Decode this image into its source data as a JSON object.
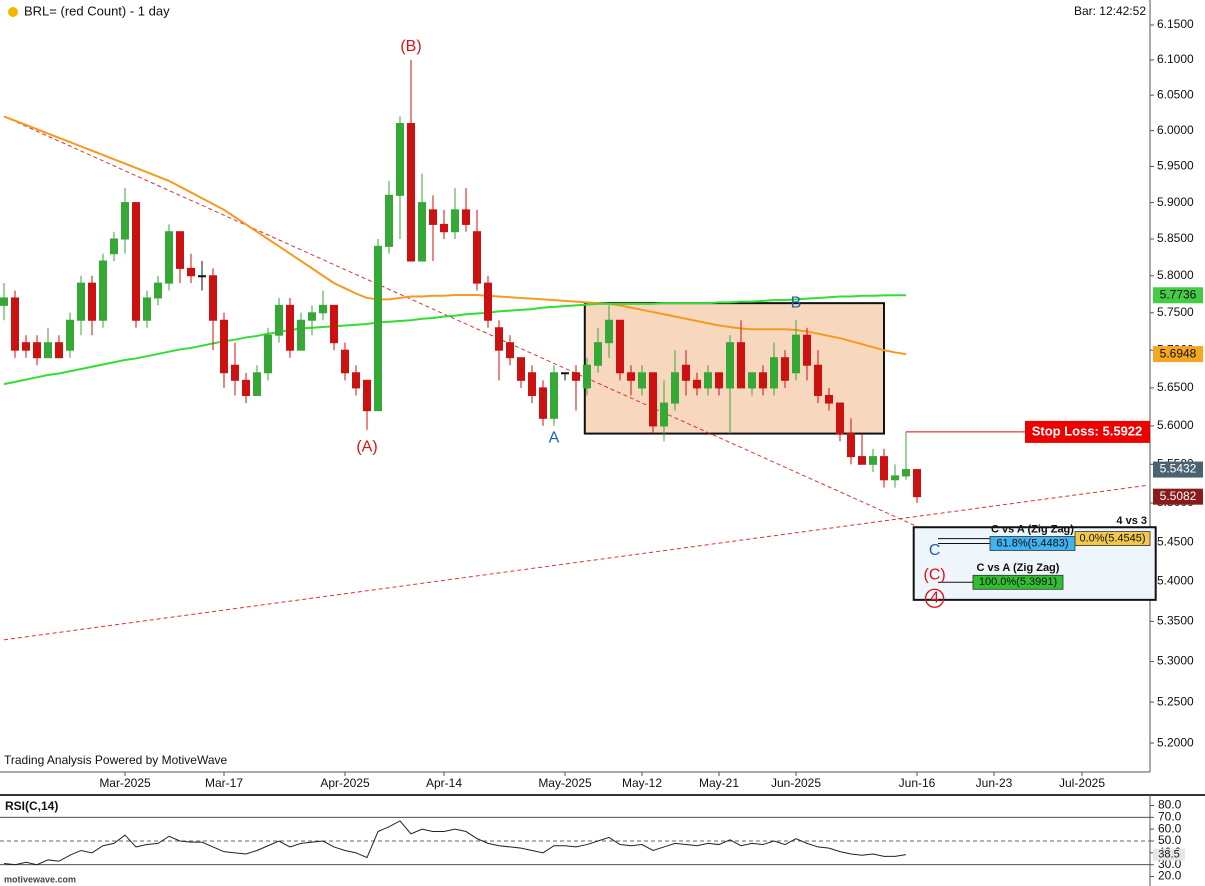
{
  "chart_data": [
    {
      "type": "candlestick",
      "title": "BRL= (red Count) - 1 day",
      "bar_time": "Bar: 12:42:52",
      "credit": "Trading Analysis Powered by MotiveWave",
      "title_dot_color": "#f5b400",
      "log_scale": true,
      "ylim": [
        5.165,
        6.186
      ],
      "yticks": [
        {
          "value": 6.15,
          "label": "6.1500"
        },
        {
          "value": 6.1,
          "label": "6.1000"
        },
        {
          "value": 6.05,
          "label": "6.0500"
        },
        {
          "value": 6.0,
          "label": "6.0000"
        },
        {
          "value": 5.95,
          "label": "5.9500"
        },
        {
          "value": 5.9,
          "label": "5.9000"
        },
        {
          "value": 5.85,
          "label": "5.8500"
        },
        {
          "value": 5.8,
          "label": "5.8000"
        },
        {
          "value": 5.75,
          "label": "5.7500"
        },
        {
          "value": 5.7,
          "label": "5.7000"
        },
        {
          "value": 5.65,
          "label": "5.6500"
        },
        {
          "value": 5.6,
          "label": "5.6000"
        },
        {
          "value": 5.55,
          "label": "5.5500"
        },
        {
          "value": 5.5,
          "label": "5.5000"
        },
        {
          "value": 5.45,
          "label": "5.4500"
        },
        {
          "value": 5.4,
          "label": "5.4000"
        },
        {
          "value": 5.35,
          "label": "5.3500"
        },
        {
          "value": 5.3,
          "label": "5.3000"
        },
        {
          "value": 5.25,
          "label": "5.2500"
        },
        {
          "value": 5.2,
          "label": "5.2000"
        }
      ],
      "categories": [
        null,
        null,
        null,
        null,
        null,
        null,
        null,
        null,
        null,
        null,
        null,
        "Mar-2025",
        null,
        null,
        null,
        null,
        null,
        null,
        null,
        null,
        "Mar-17",
        null,
        null,
        null,
        null,
        null,
        null,
        null,
        null,
        null,
        null,
        "Apr-2025",
        null,
        null,
        null,
        null,
        null,
        null,
        null,
        null,
        "Apr-14",
        null,
        null,
        null,
        null,
        null,
        null,
        null,
        null,
        null,
        null,
        "May-2025",
        null,
        null,
        null,
        null,
        null,
        null,
        "May-12",
        null,
        null,
        null,
        null,
        null,
        null,
        "May-21",
        null,
        null,
        null,
        null,
        null,
        null,
        "Jun-2025",
        null,
        null,
        null,
        null,
        null,
        null,
        null,
        null,
        null,
        null,
        "Jun-16",
        null,
        null,
        null,
        null,
        null,
        null,
        "Jun-23",
        null,
        null,
        null,
        null,
        null,
        null,
        null,
        "Jul-2025",
        null,
        null,
        null,
        null,
        null,
        null
      ],
      "up_color": "#35a835",
      "down_color": "#cc1111",
      "flat_color": "#111111",
      "open": [
        5.76,
        5.77,
        5.71,
        5.71,
        5.69,
        5.71,
        5.7,
        5.74,
        5.79,
        5.74,
        5.83,
        5.85,
        5.9,
        5.74,
        5.77,
        5.79,
        5.86,
        5.81,
        5.8,
        5.8,
        5.74,
        5.68,
        5.66,
        5.64,
        5.67,
        5.72,
        5.76,
        5.7,
        5.74,
        5.75,
        5.76,
        5.7,
        5.67,
        5.66,
        5.62,
        5.84,
        5.91,
        6.01,
        5.82,
        5.89,
        5.87,
        5.86,
        5.89,
        5.86,
        5.79,
        5.73,
        5.71,
        5.69,
        5.67,
        5.65,
        5.61,
        5.67,
        5.67,
        5.65,
        5.68,
        5.71,
        5.74,
        5.67,
        5.65,
        5.67,
        5.6,
        5.63,
        5.68,
        5.66,
        5.65,
        5.67,
        5.65,
        5.71,
        5.65,
        5.67,
        5.65,
        5.69,
        5.67,
        5.72,
        5.68,
        5.64,
        5.63,
        5.59,
        5.56,
        5.55,
        5.56,
        5.53,
        5.535,
        5.5432,
        null,
        null,
        null,
        null,
        null,
        null,
        null,
        null,
        null,
        null,
        null,
        null,
        null,
        null,
        null,
        null,
        null,
        null,
        null,
        null,
        null
      ],
      "high": [
        5.79,
        5.78,
        5.72,
        5.72,
        5.73,
        5.72,
        5.75,
        5.8,
        5.8,
        5.83,
        5.86,
        5.92,
        5.9,
        5.78,
        5.8,
        5.87,
        5.86,
        5.83,
        5.82,
        5.81,
        5.75,
        5.71,
        5.67,
        5.68,
        5.73,
        5.77,
        5.77,
        5.75,
        5.76,
        5.78,
        5.76,
        5.71,
        5.68,
        5.66,
        5.85,
        5.93,
        6.02,
        6.1,
        5.94,
        5.91,
        5.89,
        5.92,
        5.92,
        5.89,
        5.8,
        5.74,
        5.72,
        5.69,
        5.68,
        5.66,
        5.68,
        5.67,
        5.68,
        5.69,
        5.73,
        5.76,
        5.74,
        5.68,
        5.68,
        5.67,
        5.66,
        5.7,
        5.7,
        5.67,
        5.68,
        5.67,
        5.72,
        5.74,
        5.67,
        5.68,
        5.71,
        5.7,
        5.74,
        5.73,
        5.7,
        5.65,
        5.63,
        5.61,
        5.59,
        5.57,
        5.57,
        5.55,
        5.5922,
        5.5432,
        null,
        null,
        null,
        null,
        null,
        null,
        null,
        null,
        null,
        null,
        null,
        null,
        null,
        null,
        null,
        null,
        null,
        null,
        null,
        null,
        null
      ],
      "low": [
        5.74,
        5.69,
        5.69,
        5.68,
        5.69,
        5.69,
        5.69,
        5.72,
        5.72,
        5.73,
        5.82,
        5.83,
        5.73,
        5.73,
        5.76,
        5.78,
        5.79,
        5.79,
        5.78,
        5.7,
        5.65,
        5.64,
        5.63,
        5.64,
        5.66,
        5.71,
        5.69,
        5.7,
        5.72,
        5.74,
        5.7,
        5.66,
        5.64,
        5.595,
        5.62,
        5.83,
        5.85,
        5.82,
        5.82,
        5.82,
        5.85,
        5.85,
        5.86,
        5.78,
        5.73,
        5.66,
        5.68,
        5.65,
        5.63,
        5.6,
        5.6,
        5.66,
        5.62,
        5.64,
        5.67,
        5.69,
        5.66,
        5.64,
        5.64,
        5.59,
        5.58,
        5.62,
        5.64,
        5.64,
        5.64,
        5.64,
        5.59,
        5.65,
        5.64,
        5.64,
        5.64,
        5.65,
        5.66,
        5.66,
        5.63,
        5.62,
        5.58,
        5.55,
        5.55,
        5.54,
        5.52,
        5.52,
        5.53,
        5.5,
        null,
        null,
        null,
        null,
        null,
        null,
        null,
        null,
        null,
        null,
        null,
        null,
        null,
        null,
        null,
        null,
        null,
        null,
        null,
        null,
        null
      ],
      "close": [
        5.77,
        5.7,
        5.7,
        5.69,
        5.71,
        5.69,
        5.74,
        5.79,
        5.74,
        5.82,
        5.85,
        5.9,
        5.74,
        5.77,
        5.79,
        5.86,
        5.81,
        5.8,
        5.8,
        5.74,
        5.67,
        5.66,
        5.64,
        5.67,
        5.72,
        5.76,
        5.7,
        5.74,
        5.75,
        5.76,
        5.71,
        5.67,
        5.65,
        5.62,
        5.84,
        5.91,
        6.01,
        5.82,
        5.9,
        5.87,
        5.86,
        5.89,
        5.87,
        5.79,
        5.74,
        5.7,
        5.69,
        5.66,
        5.64,
        5.61,
        5.67,
        5.67,
        5.66,
        5.68,
        5.71,
        5.74,
        5.67,
        5.66,
        5.67,
        5.6,
        5.63,
        5.67,
        5.66,
        5.65,
        5.67,
        5.65,
        5.71,
        5.65,
        5.67,
        5.65,
        5.69,
        5.66,
        5.72,
        5.68,
        5.64,
        5.63,
        5.59,
        5.56,
        5.55,
        5.56,
        5.53,
        5.535,
        5.5432,
        5.5082,
        null,
        null,
        null,
        null,
        null,
        null,
        null,
        null,
        null,
        null,
        null,
        null,
        null,
        null,
        null,
        null,
        null,
        null,
        null,
        null,
        null
      ],
      "overlays": [
        {
          "color": "#f59a1e",
          "values": [
            6.02,
            6.014,
            6.008,
            6.002,
            5.996,
            5.99,
            5.984,
            5.978,
            5.972,
            5.966,
            5.96,
            5.954,
            5.948,
            5.942,
            5.936,
            5.93,
            5.922,
            5.914,
            5.906,
            5.898,
            5.89,
            5.88,
            5.87,
            5.86,
            5.85,
            5.84,
            5.83,
            5.82,
            5.81,
            5.8,
            5.79,
            5.783,
            5.776,
            5.77,
            5.768,
            5.768,
            5.77,
            5.772,
            5.772,
            5.773,
            5.773,
            5.774,
            5.774,
            5.774,
            5.773,
            5.772,
            5.771,
            5.77,
            5.769,
            5.768,
            5.767,
            5.766,
            5.765,
            5.764,
            5.763,
            5.762,
            5.76,
            5.757,
            5.754,
            5.751,
            5.748,
            5.745,
            5.742,
            5.739,
            5.736,
            5.733,
            5.731,
            5.729,
            5.728,
            5.728,
            5.728,
            5.728,
            5.727,
            5.725,
            5.722,
            5.719,
            5.716,
            5.712,
            5.708,
            5.704,
            5.7,
            5.697,
            5.6948,
            null,
            null,
            null,
            null,
            null,
            null,
            null,
            null,
            null,
            null,
            null,
            null,
            null,
            null,
            null,
            null,
            null,
            null,
            null,
            null,
            null,
            null
          ]
        },
        {
          "color": "#33dd33",
          "values": [
            5.655,
            5.658,
            5.661,
            5.664,
            5.667,
            5.669,
            5.672,
            5.675,
            5.678,
            5.681,
            5.684,
            5.687,
            5.689,
            5.692,
            5.695,
            5.698,
            5.701,
            5.703,
            5.706,
            5.709,
            5.712,
            5.714,
            5.717,
            5.719,
            5.722,
            5.724,
            5.727,
            5.729,
            5.73,
            5.731,
            5.732,
            5.733,
            5.734,
            5.735,
            5.737,
            5.738,
            5.739,
            5.74,
            5.742,
            5.743,
            5.745,
            5.746,
            5.748,
            5.749,
            5.75,
            5.752,
            5.753,
            5.754,
            5.755,
            5.757,
            5.758,
            5.759,
            5.76,
            5.761,
            5.762,
            5.762,
            5.762,
            5.762,
            5.762,
            5.762,
            5.763,
            5.763,
            5.763,
            5.763,
            5.763,
            5.764,
            5.764,
            5.765,
            5.765,
            5.766,
            5.767,
            5.767,
            5.768,
            5.769,
            5.77,
            5.771,
            5.772,
            5.772,
            5.773,
            5.773,
            5.7735,
            5.7736,
            5.7736,
            null,
            null,
            null,
            null,
            null,
            null,
            null,
            null,
            null,
            null,
            null,
            null,
            null,
            null,
            null,
            null,
            null,
            null,
            null,
            null,
            null,
            null
          ]
        }
      ],
      "trendlines": [
        {
          "from": [
            0,
            6.02
          ],
          "to": [
            83,
            5.47
          ],
          "color": "#e03030"
        },
        {
          "from": [
            0,
            5.327
          ],
          "to": [
            104,
            5.523
          ],
          "color": "#e03030"
        }
      ],
      "box": {
        "x": [
          52.8,
          80
        ],
        "price": [
          5.763,
          5.59
        ],
        "fill": "#f8d7bf"
      },
      "annotations": [
        {
          "text": "(A)",
          "x": 33,
          "price": 5.572,
          "color": "#dd1111"
        },
        {
          "text": "(B)",
          "x": 37,
          "price": 6.119,
          "color": "#dd1111"
        },
        {
          "text": "A",
          "x": 50,
          "price": 5.584,
          "color": "#1f5fb0"
        },
        {
          "text": "B",
          "x": 72,
          "price": 5.763,
          "color": "#1f5fb0"
        },
        {
          "text": "C",
          "x": 84.6,
          "price": 5.439,
          "color": "#1f5fb0"
        },
        {
          "text": "(C)",
          "x": 84.6,
          "price": 5.408,
          "color": "#dd1111"
        },
        {
          "text": "4",
          "x": 84.6,
          "price": 5.379,
          "color": "#dd1111",
          "circled": true
        }
      ],
      "stop_loss": {
        "label": "Stop Loss: 5.5922",
        "value": 5.5922,
        "from": 82,
        "color": "#ee0000"
      },
      "fib_box": {
        "x": [
          82.7,
          104.7
        ],
        "price": [
          5.469,
          5.377
        ],
        "fill": "#eef5fb",
        "heading": "4 vs 3"
      },
      "fib_levels": [
        {
          "label": "0.0%(5.4545)",
          "value": 5.4545,
          "color": "#f2c84b"
        },
        {
          "title": "C vs A (Zig Zag)",
          "label": "61.8%(5.4483)",
          "value": 5.4483,
          "color": "#3fb3f0"
        },
        {
          "title": "C vs A (Zig Zag)",
          "label": "100.0%(5.3991)",
          "value": 5.3991,
          "color": "#2fbf2f"
        }
      ],
      "axis_markers": [
        {
          "value": 5.7736,
          "color": "#44cc44",
          "text_color": "#111111"
        },
        {
          "value": 5.6948,
          "color": "#f5a623",
          "text_color": "#111111"
        },
        {
          "value": 5.5432,
          "color": "#4a6272",
          "text_color": "#ffffff"
        },
        {
          "value": 5.5082,
          "color": "#8b1a1a",
          "text_color": "#ffffff"
        }
      ]
    },
    {
      "type": "line",
      "title": "RSI(C,14)",
      "color": "#222222",
      "ylim": [
        12,
        88
      ],
      "yticks": [
        {
          "value": 80,
          "label": "80.0"
        },
        {
          "value": 70,
          "label": "70.0"
        },
        {
          "value": 60,
          "label": "60.0"
        },
        {
          "value": 50,
          "label": "50.0"
        },
        {
          "value": 40,
          "label": "40.0"
        },
        {
          "value": 30,
          "label": "30.0"
        },
        {
          "value": 20,
          "label": "20.0"
        }
      ],
      "reference_lines": [
        {
          "value": 70,
          "dash": false
        },
        {
          "value": 50,
          "dash": true
        },
        {
          "value": 30,
          "dash": false
        }
      ],
      "values": [
        31,
        30,
        32,
        30,
        34,
        33,
        38,
        42,
        40,
        46,
        48,
        55,
        45,
        47,
        48,
        54,
        50,
        49,
        49,
        45,
        41,
        40,
        39,
        42,
        46,
        50,
        45,
        48,
        49,
        50,
        45,
        42,
        40,
        36,
        58,
        62,
        67,
        56,
        60,
        58,
        58,
        60,
        58,
        52,
        48,
        46,
        45,
        44,
        42,
        40,
        46,
        46,
        45,
        47,
        50,
        53,
        47,
        46,
        47,
        42,
        45,
        48,
        47,
        46,
        48,
        47,
        51,
        46,
        48,
        47,
        50,
        47,
        52,
        48,
        45,
        44,
        41,
        39,
        38,
        39,
        37,
        37,
        38.5,
        null,
        null,
        null,
        null,
        null,
        null,
        null,
        null,
        null,
        null,
        null,
        null,
        null,
        null,
        null,
        null,
        null,
        null,
        null,
        null,
        null,
        null
      ],
      "axis_markers": [
        {
          "value": 38.5,
          "color": "#e6e6e6",
          "text_color": "#111111"
        }
      ]
    }
  ],
  "watermark": "motivewave.com"
}
